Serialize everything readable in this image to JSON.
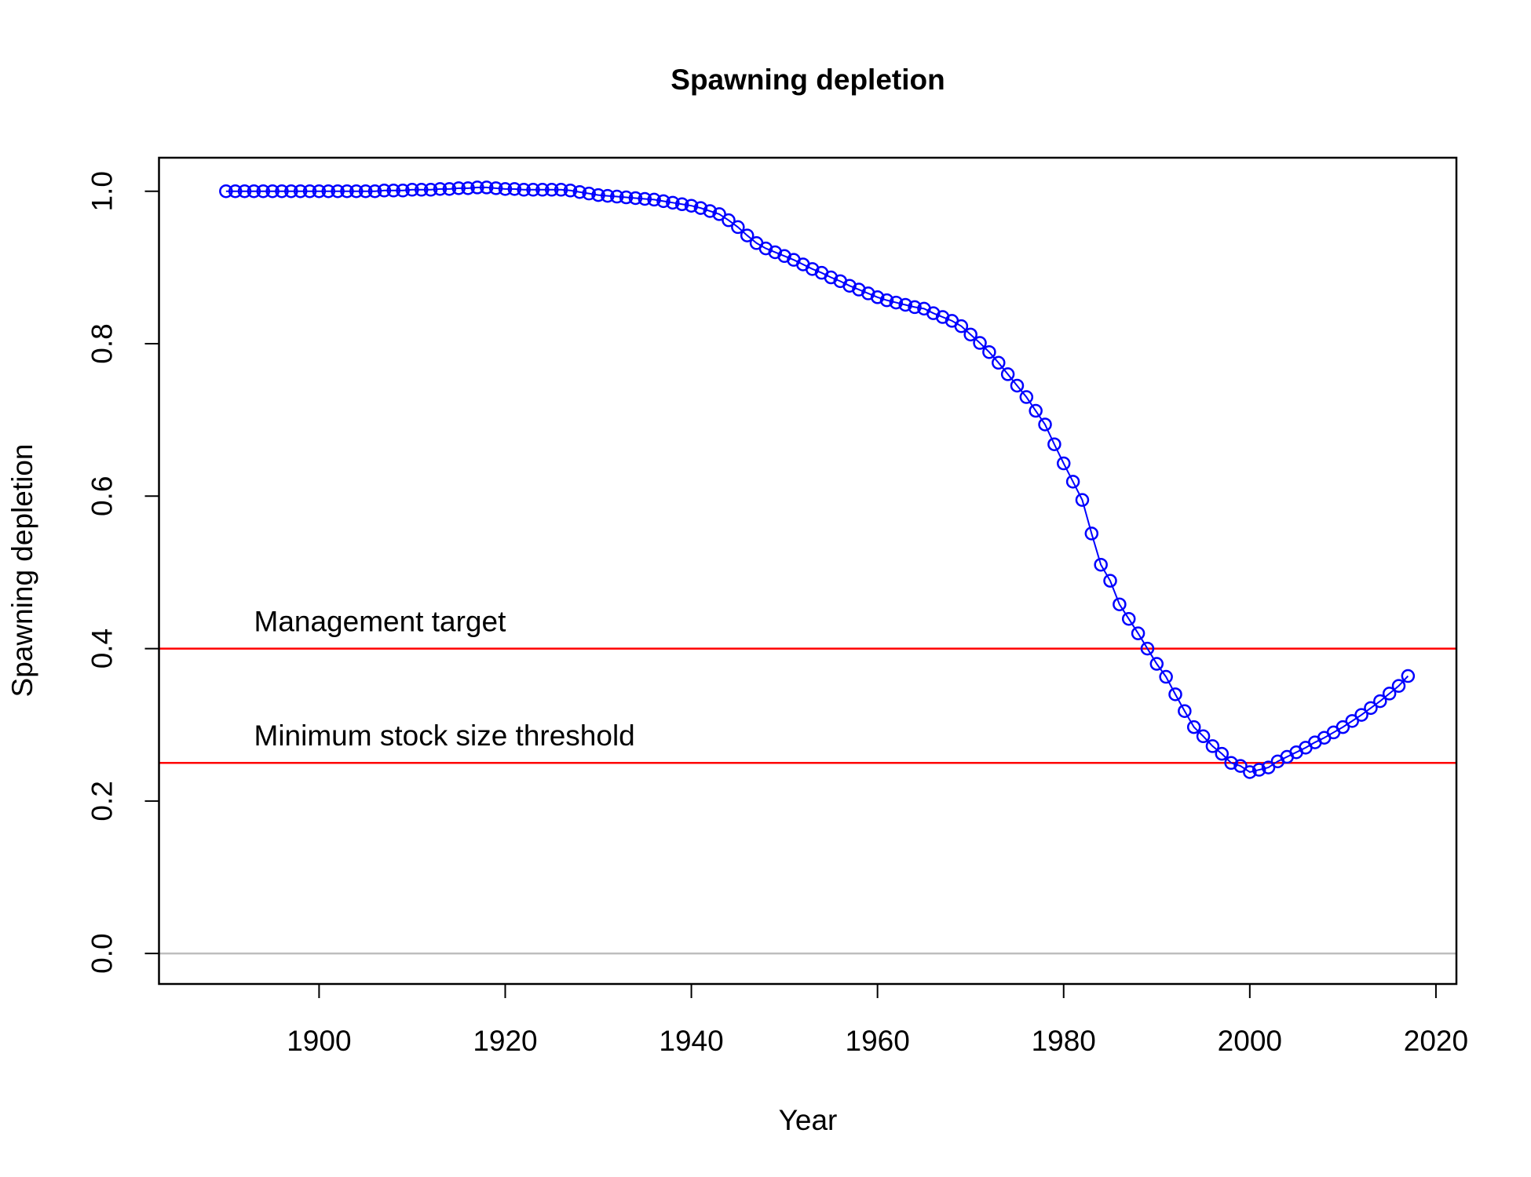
{
  "chart_data": {
    "type": "line",
    "title": "Spawning depletion",
    "xlabel": "Year",
    "ylabel": "Spawning depletion",
    "x": [
      1890,
      1891,
      1892,
      1893,
      1894,
      1895,
      1896,
      1897,
      1898,
      1899,
      1900,
      1901,
      1902,
      1903,
      1904,
      1905,
      1906,
      1907,
      1908,
      1909,
      1910,
      1911,
      1912,
      1913,
      1914,
      1915,
      1916,
      1917,
      1918,
      1919,
      1920,
      1921,
      1922,
      1923,
      1924,
      1925,
      1926,
      1927,
      1928,
      1929,
      1930,
      1931,
      1932,
      1933,
      1934,
      1935,
      1936,
      1937,
      1938,
      1939,
      1940,
      1941,
      1942,
      1943,
      1944,
      1945,
      1946,
      1947,
      1948,
      1949,
      1950,
      1951,
      1952,
      1953,
      1954,
      1955,
      1956,
      1957,
      1958,
      1959,
      1960,
      1961,
      1962,
      1963,
      1964,
      1965,
      1966,
      1967,
      1968,
      1969,
      1970,
      1971,
      1972,
      1973,
      1974,
      1975,
      1976,
      1977,
      1978,
      1979,
      1980,
      1981,
      1982,
      1983,
      1984,
      1985,
      1986,
      1987,
      1988,
      1989,
      1990,
      1991,
      1992,
      1993,
      1994,
      1995,
      1996,
      1997,
      1998,
      1999,
      2000,
      2001,
      2002,
      2003,
      2004,
      2005,
      2006,
      2007,
      2008,
      2009,
      2010,
      2011,
      2012,
      2013,
      2014,
      2015,
      2016,
      2017
    ],
    "series": [
      {
        "name": "Spawning depletion",
        "color": "#0000ff",
        "values": [
          1.0,
          1.0,
          1.0,
          1.0,
          1.0,
          1.0,
          1.0,
          1.0,
          1.0,
          1.0,
          1.0,
          1.0,
          1.0,
          1.0,
          1.0,
          1.0,
          1.0,
          1.001,
          1.001,
          1.001,
          1.002,
          1.002,
          1.002,
          1.003,
          1.003,
          1.004,
          1.004,
          1.005,
          1.005,
          1.004,
          1.003,
          1.003,
          1.002,
          1.002,
          1.002,
          1.002,
          1.002,
          1.001,
          0.999,
          0.997,
          0.995,
          0.994,
          0.993,
          0.992,
          0.991,
          0.99,
          0.989,
          0.987,
          0.985,
          0.983,
          0.981,
          0.978,
          0.974,
          0.97,
          0.962,
          0.953,
          0.942,
          0.932,
          0.925,
          0.92,
          0.915,
          0.91,
          0.904,
          0.898,
          0.893,
          0.887,
          0.882,
          0.876,
          0.871,
          0.866,
          0.861,
          0.857,
          0.854,
          0.851,
          0.848,
          0.846,
          0.84,
          0.835,
          0.83,
          0.823,
          0.812,
          0.801,
          0.789,
          0.775,
          0.76,
          0.745,
          0.73,
          0.712,
          0.694,
          0.668,
          0.643,
          0.619,
          0.595,
          0.551,
          0.51,
          0.489,
          0.458,
          0.439,
          0.42,
          0.4,
          0.38,
          0.363,
          0.34,
          0.318,
          0.297,
          0.285,
          0.272,
          0.262,
          0.25,
          0.246,
          0.238,
          0.241,
          0.244,
          0.252,
          0.258,
          0.264,
          0.27,
          0.277,
          0.283,
          0.29,
          0.297,
          0.305,
          0.313,
          0.322,
          0.331,
          0.341,
          0.351,
          0.364
        ]
      }
    ],
    "hlines": [
      {
        "value": 0.4,
        "color": "#ff0000",
        "label": "Management target"
      },
      {
        "value": 0.25,
        "color": "#ff0000",
        "label": "Minimum stock size threshold"
      },
      {
        "value": 0,
        "color": "#bebebe"
      }
    ],
    "xlim": [
      1882.8,
      2022.2
    ],
    "ylim": [
      -0.04,
      1.044
    ],
    "xticks": [
      1900,
      1920,
      1940,
      1960,
      1980,
      2000,
      2020
    ],
    "yticks": [
      {
        "value": 0,
        "label": "0.0"
      },
      {
        "value": 0.2,
        "label": "0.2"
      },
      {
        "value": 0.4,
        "label": "0.4"
      },
      {
        "value": 0.6,
        "label": "0.6"
      },
      {
        "value": 0.8,
        "label": "0.8"
      },
      {
        "value": 1,
        "label": "1.0"
      }
    ]
  }
}
